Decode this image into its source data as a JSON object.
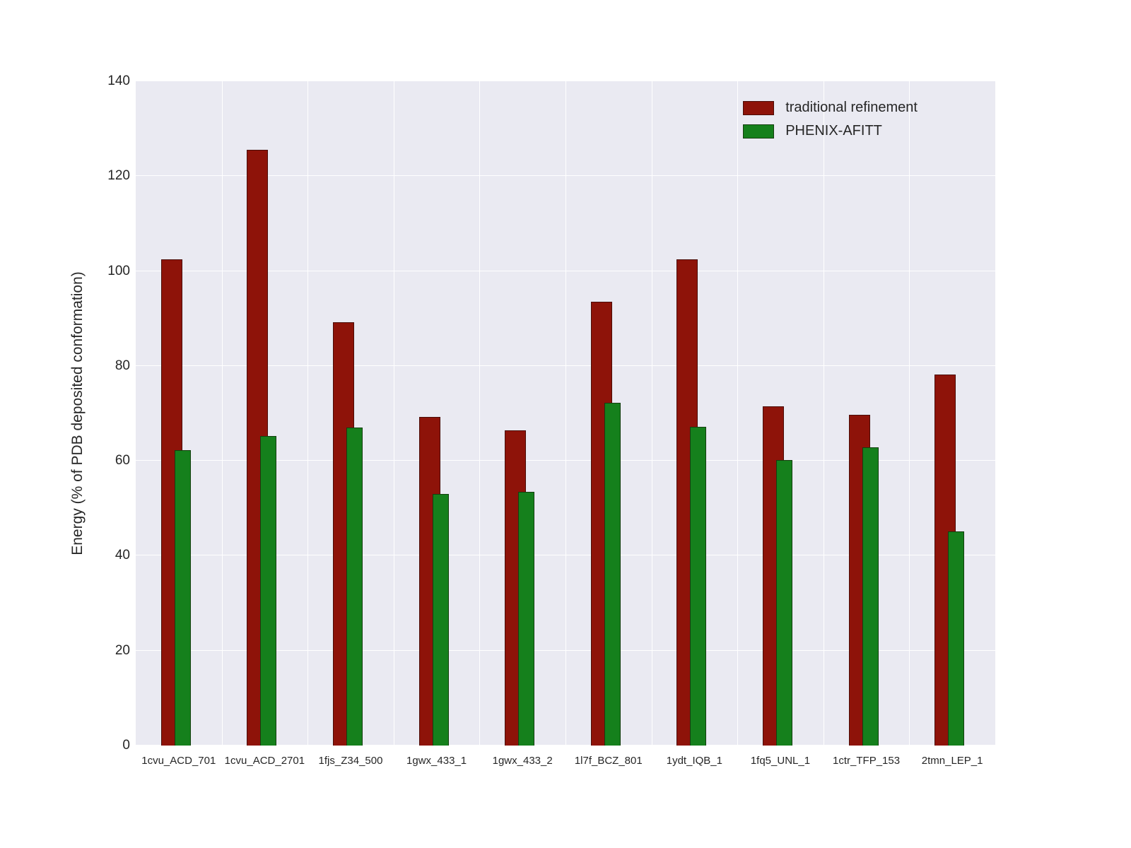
{
  "chart_data": {
    "type": "bar",
    "title": "",
    "xlabel": "",
    "ylabel": "Energy (% of PDB deposited conformation)",
    "ylim": [
      0,
      140
    ],
    "yticks": [
      0,
      20,
      40,
      60,
      80,
      100,
      120,
      140
    ],
    "grid": true,
    "legend_position": "upper right",
    "plot_background": "#eaeaf2",
    "grid_color": "#ffffff",
    "categories": [
      "1cvu_ACD_701",
      "1cvu_ACD_2701",
      "1fjs_Z34_500",
      "1gwx_433_1",
      "1gwx_433_2",
      "1l7f_BCZ_801",
      "1ydt_IQB_1",
      "1fq5_UNL_1",
      "1ctr_TFP_153",
      "2tmn_LEP_1"
    ],
    "series": [
      {
        "name": "traditional refinement",
        "color": "#8e1309",
        "values": [
          102.5,
          125.5,
          89.2,
          69.2,
          66.5,
          93.5,
          102.5,
          71.5,
          69.7,
          78.2
        ]
      },
      {
        "name": "PHENIX-AFITT",
        "color": "#15801c",
        "values": [
          62.2,
          65.2,
          67.0,
          53.0,
          53.5,
          72.3,
          67.2,
          60.2,
          62.8,
          45.2
        ]
      }
    ]
  }
}
